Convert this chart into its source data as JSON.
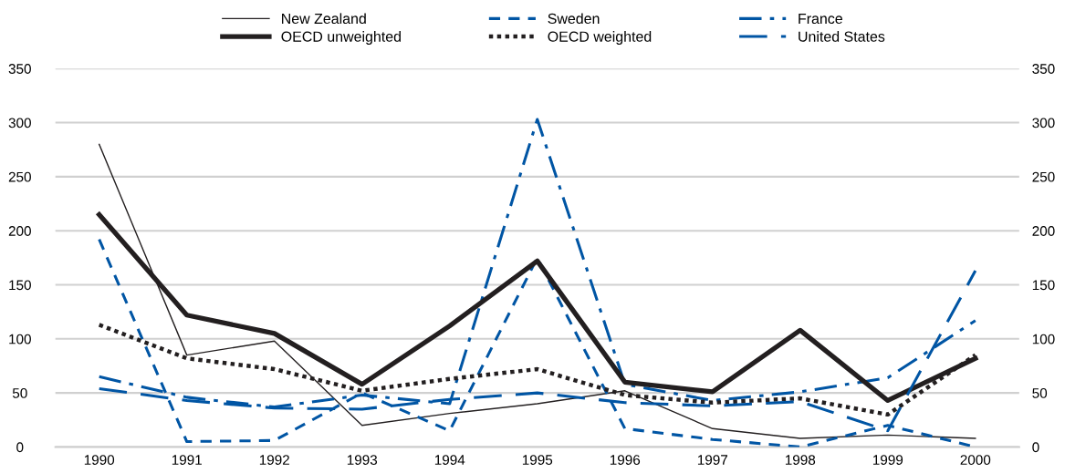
{
  "chart_data": {
    "type": "line",
    "categories": [
      "1990",
      "1991",
      "1992",
      "1993",
      "1994",
      "1995",
      "1996",
      "1997",
      "1998",
      "1999",
      "2000"
    ],
    "series": [
      {
        "name": "New Zealand",
        "color": "#231f20",
        "line_style": "solid",
        "values": [
          280,
          85,
          98,
          20,
          31,
          40,
          52,
          17,
          8,
          11,
          8
        ]
      },
      {
        "name": "Sweden",
        "color": "#0055a4",
        "line_style": "dashed",
        "values": [
          192,
          5,
          6,
          50,
          15,
          175,
          17,
          7,
          0,
          20,
          0
        ]
      },
      {
        "name": "France",
        "color": "#0055a4",
        "line_style": "dashdot",
        "values": [
          65,
          46,
          37,
          48,
          40,
          303,
          58,
          43,
          51,
          64,
          117
        ]
      },
      {
        "name": "OECD unweighted",
        "color": "#231f20",
        "line_style": "solid",
        "values": [
          215,
          122,
          105,
          58,
          112,
          172,
          60,
          51,
          108,
          43,
          82
        ]
      },
      {
        "name": "OECD weighted",
        "color": "#231f20",
        "line_style": "dotted",
        "values": [
          113,
          82,
          72,
          52,
          63,
          72,
          48,
          41,
          45,
          30,
          85
        ]
      },
      {
        "name": "United States",
        "color": "#0055a4",
        "line_style": "longdash",
        "values": [
          54,
          43,
          36,
          35,
          44,
          50,
          41,
          38,
          42,
          15,
          163
        ]
      }
    ],
    "ylim": [
      0,
      350
    ],
    "yticks": [
      0,
      50,
      100,
      150,
      200,
      250,
      300,
      350
    ],
    "y2lim": [
      0,
      350
    ],
    "y2ticks": [
      0,
      50,
      100,
      150,
      200,
      250,
      300,
      350
    ],
    "grid": "y",
    "legend": "top",
    "marker": "none"
  }
}
